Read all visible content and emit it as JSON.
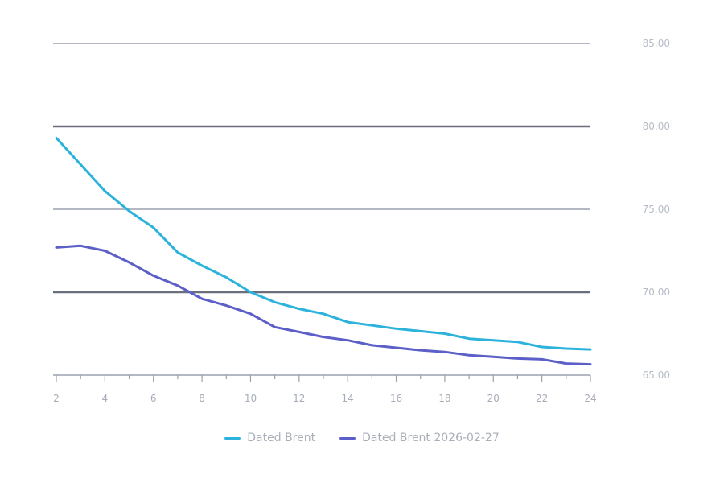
{
  "chart_data": {
    "type": "line",
    "title": "",
    "xlabel": "",
    "ylabel": "",
    "x": [
      2,
      3,
      4,
      5,
      6,
      7,
      8,
      9,
      10,
      11,
      12,
      13,
      14,
      15,
      16,
      17,
      18,
      19,
      20,
      21,
      22,
      23,
      24
    ],
    "x_ticks": [
      2,
      4,
      6,
      8,
      10,
      12,
      14,
      16,
      18,
      20,
      22,
      24
    ],
    "xlim": [
      2,
      24
    ],
    "ylim": [
      65,
      85
    ],
    "y_ticks": [
      "65.00",
      "70.00",
      "75.00",
      "80.00",
      "85.00"
    ],
    "y_axis_position": "right",
    "grid": true,
    "legend": "bottom-center",
    "series": [
      {
        "name": "Dated Brent",
        "color": "#2bb3dc",
        "values": [
          79.3,
          77.7,
          76.1,
          74.9,
          73.9,
          72.4,
          71.6,
          70.9,
          70.0,
          69.4,
          69.0,
          68.7,
          68.2,
          68.0,
          67.8,
          67.65,
          67.5,
          67.2,
          67.1,
          67.0,
          66.7,
          66.6,
          66.55
        ]
      },
      {
        "name": "Dated Brent 2026-02-27",
        "color": "#5b5fc7",
        "values": [
          72.7,
          72.8,
          72.5,
          71.8,
          71.0,
          70.4,
          69.6,
          69.2,
          68.7,
          67.9,
          67.6,
          67.3,
          67.1,
          66.8,
          66.65,
          66.5,
          66.4,
          66.2,
          66.1,
          66.0,
          65.95,
          65.7,
          65.65
        ]
      }
    ]
  }
}
